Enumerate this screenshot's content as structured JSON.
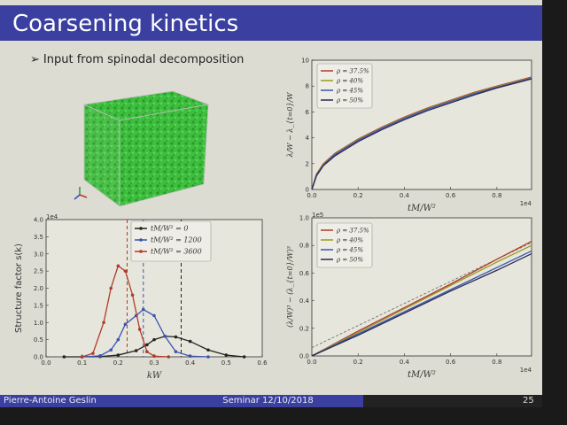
{
  "slide": {
    "title": "Coarsening kinetics",
    "bullet": "Input from spinodal decomposition",
    "footer_author": "Pierre-Antoine Geslin",
    "footer_seminar": "Seminar 12/10/2018",
    "page_number": "25",
    "colors": {
      "title_bar": "#3a3fa0",
      "cube": "#3fbf3f"
    }
  },
  "chart_data": [
    {
      "type": "line",
      "ylabel": "Structure factor s(k)",
      "xlabel": "kW",
      "y_exponent": "1e4",
      "xlim": [
        0,
        0.6
      ],
      "ylim": [
        0,
        4.0
      ],
      "xticks": [
        "0.0",
        "0.1",
        "0.2",
        "0.3",
        "0.4",
        "0.5",
        "0.6"
      ],
      "yticks": [
        "0.0",
        "0.5",
        "1.0",
        "1.5",
        "2.0",
        "2.5",
        "3.0",
        "3.5",
        "4.0"
      ],
      "legend_position": "top-right",
      "series": [
        {
          "name": "tM/W² = 0",
          "color": "#222222",
          "x": [
            0.05,
            0.1,
            0.15,
            0.2,
            0.25,
            0.28,
            0.3,
            0.33,
            0.36,
            0.4,
            0.45,
            0.5,
            0.55
          ],
          "y": [
            0,
            0,
            0.01,
            0.05,
            0.18,
            0.35,
            0.5,
            0.6,
            0.58,
            0.45,
            0.2,
            0.05,
            0
          ]
        },
        {
          "name": "tM/W² = 1200",
          "color": "#3a54b0",
          "x": [
            0.1,
            0.15,
            0.18,
            0.2,
            0.22,
            0.25,
            0.27,
            0.3,
            0.33,
            0.36,
            0.4,
            0.45
          ],
          "y": [
            0,
            0.03,
            0.2,
            0.5,
            0.95,
            1.2,
            1.38,
            1.2,
            0.6,
            0.15,
            0.02,
            0
          ]
        },
        {
          "name": "tM/W² = 3600",
          "color": "#b03a2a",
          "x": [
            0.1,
            0.13,
            0.16,
            0.18,
            0.2,
            0.22,
            0.24,
            0.26,
            0.28,
            0.3,
            0.34
          ],
          "y": [
            0,
            0.1,
            1.0,
            2.0,
            2.65,
            2.5,
            1.8,
            0.8,
            0.15,
            0.02,
            0
          ]
        }
      ],
      "vlines": [
        {
          "x": 0.225,
          "color": "#b03a2a"
        },
        {
          "x": 0.27,
          "color": "#3a54b0"
        },
        {
          "x": 0.375,
          "color": "#222222"
        }
      ]
    },
    {
      "type": "line",
      "ylabel": "λ/W − λ_{t=0}/W",
      "xlabel": "tM/W²",
      "x_exponent": "1e4",
      "xlim": [
        0,
        0.95
      ],
      "ylim": [
        0,
        10
      ],
      "xticks": [
        "0.0",
        "0.2",
        "0.4",
        "0.6",
        "0.8"
      ],
      "yticks": [
        "0",
        "2",
        "4",
        "6",
        "8",
        "10"
      ],
      "legend_position": "top-left",
      "series": [
        {
          "name": "ρ = 37.5%",
          "color": "#b03a2a",
          "x": [
            0,
            0.02,
            0.05,
            0.1,
            0.2,
            0.3,
            0.4,
            0.5,
            0.6,
            0.7,
            0.8,
            0.95
          ],
          "y": [
            0,
            1.2,
            2.0,
            2.8,
            3.9,
            4.8,
            5.6,
            6.3,
            6.9,
            7.5,
            8.0,
            8.7
          ]
        },
        {
          "name": "ρ = 40%",
          "color": "#9a9a20",
          "x": [
            0,
            0.02,
            0.05,
            0.1,
            0.2,
            0.3,
            0.4,
            0.5,
            0.6,
            0.7,
            0.8,
            0.95
          ],
          "y": [
            0,
            1.15,
            1.95,
            2.75,
            3.85,
            4.75,
            5.55,
            6.25,
            6.85,
            7.45,
            7.95,
            8.65
          ]
        },
        {
          "name": "ρ = 45%",
          "color": "#3a54b0",
          "x": [
            0,
            0.02,
            0.05,
            0.1,
            0.2,
            0.3,
            0.4,
            0.5,
            0.6,
            0.7,
            0.8,
            0.95
          ],
          "y": [
            0,
            1.1,
            1.9,
            2.7,
            3.8,
            4.7,
            5.5,
            6.2,
            6.8,
            7.4,
            7.9,
            8.6
          ]
        },
        {
          "name": "ρ = 50%",
          "color": "#2a2a55",
          "x": [
            0,
            0.02,
            0.05,
            0.1,
            0.2,
            0.3,
            0.4,
            0.5,
            0.6,
            0.7,
            0.8,
            0.95
          ],
          "y": [
            0,
            1.05,
            1.85,
            2.6,
            3.7,
            4.6,
            5.4,
            6.1,
            6.7,
            7.3,
            7.85,
            8.55
          ]
        }
      ]
    },
    {
      "type": "line",
      "ylabel": "(λ/W)³ − (λ_{t=0}/W)³",
      "xlabel": "tM/W²",
      "x_exponent": "1e4",
      "y_exponent": "1e5",
      "xlim": [
        0,
        0.95
      ],
      "ylim": [
        0,
        1.0
      ],
      "xticks": [
        "0.0",
        "0.2",
        "0.4",
        "0.6",
        "0.8"
      ],
      "yticks": [
        "0.0",
        "0.2",
        "0.4",
        "0.6",
        "0.8",
        "1.0"
      ],
      "legend_position": "top-left",
      "series": [
        {
          "name": "ρ = 37.5%",
          "color": "#b03a2a",
          "x": [
            0,
            0.2,
            0.4,
            0.6,
            0.8,
            0.95
          ],
          "y": [
            0,
            0.18,
            0.35,
            0.52,
            0.7,
            0.83
          ]
        },
        {
          "name": "ρ = 40%",
          "color": "#9a9a20",
          "x": [
            0,
            0.2,
            0.4,
            0.6,
            0.8,
            0.95
          ],
          "y": [
            0,
            0.17,
            0.34,
            0.51,
            0.68,
            0.8
          ]
        },
        {
          "name": "ρ = 45%",
          "color": "#3a54b0",
          "x": [
            0,
            0.2,
            0.4,
            0.6,
            0.8,
            0.95
          ],
          "y": [
            0,
            0.16,
            0.32,
            0.48,
            0.64,
            0.76
          ]
        },
        {
          "name": "ρ = 50%",
          "color": "#2a2a55",
          "x": [
            0,
            0.2,
            0.4,
            0.6,
            0.8,
            0.95
          ],
          "y": [
            0,
            0.15,
            0.31,
            0.47,
            0.62,
            0.74
          ]
        }
      ],
      "fit_line": {
        "x": [
          0,
          0.95
        ],
        "y": [
          0.06,
          0.82
        ],
        "color": "#666666"
      }
    }
  ]
}
